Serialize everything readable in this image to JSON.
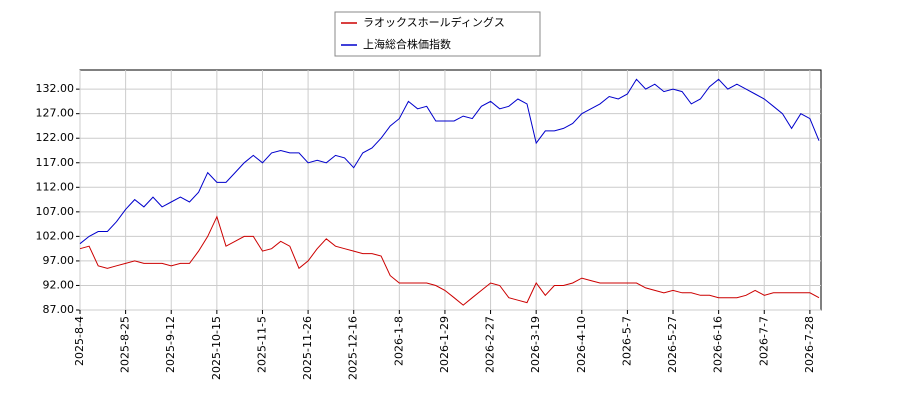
{
  "chart_data": {
    "type": "line",
    "categories": [
      "2025-8-4",
      null,
      null,
      null,
      null,
      "2025-8-25",
      null,
      null,
      null,
      null,
      "2025-9-12",
      null,
      null,
      null,
      null,
      "2025-10-15",
      null,
      null,
      null,
      null,
      "2025-11-5",
      null,
      null,
      null,
      null,
      "2025-11-26",
      null,
      null,
      null,
      null,
      "2025-12-16",
      null,
      null,
      null,
      null,
      "2026-1-8",
      null,
      null,
      null,
      null,
      "2026-1-29",
      null,
      null,
      null,
      null,
      "2026-2-27",
      null,
      null,
      null,
      null,
      "2026-3-19",
      null,
      null,
      null,
      null,
      "2026-4-10",
      null,
      null,
      null,
      null,
      "2026-5-7",
      null,
      null,
      null,
      null,
      "2026-5-27",
      null,
      null,
      null,
      null,
      "2026-6-16",
      null,
      null,
      null,
      null,
      "2026-7-7",
      null,
      null,
      null,
      null,
      "2026-7-28",
      null
    ],
    "series": [
      {
        "name": "ラオックスホールディングス",
        "color": "#cc0000",
        "values": [
          99.5,
          100,
          96,
          95.5,
          96,
          96.5,
          97,
          96.5,
          96.5,
          96.5,
          96,
          96.5,
          96.5,
          99,
          102,
          106,
          100,
          101,
          102,
          102,
          99,
          99.5,
          101,
          100,
          95.5,
          97,
          99.5,
          101.5,
          100,
          99.5,
          99,
          98.5,
          98.5,
          98,
          94,
          92.5,
          92.5,
          92.5,
          92.5,
          92,
          91,
          89.5,
          88,
          89.5,
          91,
          92.5,
          92,
          89.5,
          89,
          88.5,
          92.5,
          90,
          92,
          92,
          92.5,
          93.5,
          93,
          92.5,
          92.5,
          92.5,
          92.5,
          92.5,
          91.5,
          91,
          90.5,
          91,
          90.5,
          90.5,
          90,
          90,
          89.5,
          89.5,
          89.5,
          90,
          91,
          90,
          90.5,
          90.5,
          90.5,
          90.5,
          90.5,
          89.5
        ]
      },
      {
        "name": "上海総合株価指数",
        "color": "#0000cc",
        "values": [
          100.5,
          102,
          103,
          103,
          105,
          107.5,
          109.5,
          108,
          110,
          108,
          109,
          110,
          109,
          111,
          115,
          113,
          113,
          115,
          117,
          118.5,
          117,
          119,
          119.5,
          119,
          119,
          117,
          117.5,
          117,
          118.5,
          118,
          116,
          119,
          120,
          122,
          124.5,
          126,
          129.5,
          128,
          128.5,
          125.5,
          125.5,
          125.5,
          126.5,
          126,
          128.5,
          129.5,
          128,
          128.5,
          130,
          129,
          121,
          123.5,
          123.5,
          124,
          125,
          127,
          128,
          129,
          130.5,
          130,
          131,
          134,
          132,
          133,
          131.5,
          132,
          131.5,
          129,
          130,
          132.5,
          134,
          132,
          133,
          132,
          131,
          130,
          128.5,
          127,
          124,
          127,
          126,
          121.5
        ]
      }
    ],
    "ylim": [
      87,
      135.9
    ],
    "yticks": [
      {
        "value": 87,
        "label": "87.00"
      },
      {
        "value": 92,
        "label": "92.00"
      },
      {
        "value": 97,
        "label": "97.00"
      },
      {
        "value": 102,
        "label": "102.00"
      },
      {
        "value": 107,
        "label": "107.00"
      },
      {
        "value": 112,
        "label": "112.00"
      },
      {
        "value": 117,
        "label": "117.00"
      },
      {
        "value": 122,
        "label": "122.00"
      },
      {
        "value": 127,
        "label": "127.00"
      },
      {
        "value": 132,
        "label": "132.00"
      }
    ],
    "grid": true,
    "legend": "top"
  }
}
